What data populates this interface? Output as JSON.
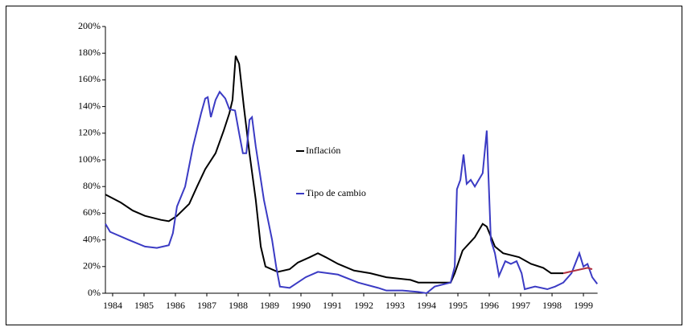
{
  "chart_data": {
    "type": "line",
    "xlim": [
      1983.77,
      1999.45
    ],
    "xticks": [
      1984,
      1985,
      1986,
      1987,
      1988,
      1989,
      1990,
      1991,
      1992,
      1993,
      1994,
      1995,
      1996,
      1997,
      1998,
      1999
    ],
    "ylim": [
      0,
      200
    ],
    "yticks": [
      {
        "value": 0,
        "label": "0%"
      },
      {
        "value": 20,
        "label": "20%"
      },
      {
        "value": 40,
        "label": "40%"
      },
      {
        "value": 60,
        "label": "60%"
      },
      {
        "value": 80,
        "label": "80%"
      },
      {
        "value": 100,
        "label": "100%"
      },
      {
        "value": 120,
        "label": "120%"
      },
      {
        "value": 140,
        "label": "140%"
      },
      {
        "value": 160,
        "label": "160%"
      },
      {
        "value": 180,
        "label": "180%"
      },
      {
        "value": 200,
        "label": "200%"
      }
    ],
    "series": [
      {
        "name": "Inflación",
        "color": "#000000",
        "x": [
          1983.77,
          1984.26,
          1984.64,
          1985.03,
          1985.54,
          1985.79,
          1986.05,
          1986.44,
          1986.69,
          1986.95,
          1987.28,
          1987.54,
          1987.72,
          1987.82,
          1987.92,
          1988.03,
          1988.18,
          1988.36,
          1988.56,
          1988.72,
          1988.87,
          1989.26,
          1989.64,
          1989.9,
          1990.28,
          1990.54,
          1990.79,
          1991.18,
          1991.69,
          1992.21,
          1992.72,
          1993.49,
          1993.74,
          1994.77,
          1994.9,
          1995.15,
          1995.54,
          1995.79,
          1995.92,
          1996.18,
          1996.44,
          1996.95,
          1997.33,
          1997.72,
          1997.97,
          1998.36
        ],
        "values": [
          74,
          68,
          62,
          58,
          55,
          54,
          58,
          67,
          80,
          93,
          105,
          122,
          135,
          145,
          178,
          172,
          140,
          105,
          70,
          35,
          20,
          16,
          18,
          23,
          27,
          30,
          27,
          22,
          17,
          15,
          12,
          10,
          8,
          8,
          15,
          32,
          42,
          52,
          50,
          35,
          30,
          27,
          22,
          19,
          15,
          15
        ]
      },
      {
        "name": "Tipo de cambio",
        "color": "#3b3bc4",
        "x": [
          1983.77,
          1983.92,
          1984.51,
          1985.03,
          1985.41,
          1985.79,
          1985.92,
          1986.05,
          1986.31,
          1986.56,
          1986.82,
          1986.95,
          1987.03,
          1987.13,
          1987.28,
          1987.41,
          1987.59,
          1987.72,
          1987.9,
          1988.03,
          1988.15,
          1988.26,
          1988.36,
          1988.44,
          1988.56,
          1988.82,
          1989.08,
          1989.21,
          1989.33,
          1989.64,
          1990.15,
          1990.54,
          1991.18,
          1991.82,
          1992.46,
          1992.72,
          1993.23,
          1993.74,
          1994.0,
          1994.26,
          1994.77,
          1994.9,
          1994.97,
          1995.08,
          1995.18,
          1995.28,
          1995.41,
          1995.54,
          1995.79,
          1995.92,
          1996.05,
          1996.18,
          1996.31,
          1996.51,
          1996.69,
          1996.87,
          1997.03,
          1997.13,
          1997.46,
          1997.85,
          1998.1,
          1998.36,
          1998.62,
          1998.87,
          1999.0,
          1999.13,
          1999.28,
          1999.44
        ],
        "values": [
          52,
          46,
          40,
          35,
          34,
          36,
          45,
          65,
          80,
          110,
          135,
          146,
          147,
          132,
          145,
          151,
          146,
          138,
          137,
          120,
          105,
          105,
          130,
          132,
          110,
          70,
          40,
          20,
          5,
          4,
          12,
          16,
          14,
          8,
          4,
          2,
          2,
          1,
          0,
          5,
          8,
          20,
          78,
          85,
          104,
          82,
          85,
          80,
          90,
          122,
          40,
          30,
          13,
          24,
          22,
          24,
          15,
          3,
          5,
          3,
          5,
          8,
          15,
          30,
          20,
          22,
          12,
          7
        ]
      },
      {
        "color": "#b03040",
        "x": [
          1998.36,
          1998.74,
          1999.13,
          1999.28
        ],
        "values": [
          15,
          17,
          19,
          18
        ]
      }
    ]
  }
}
